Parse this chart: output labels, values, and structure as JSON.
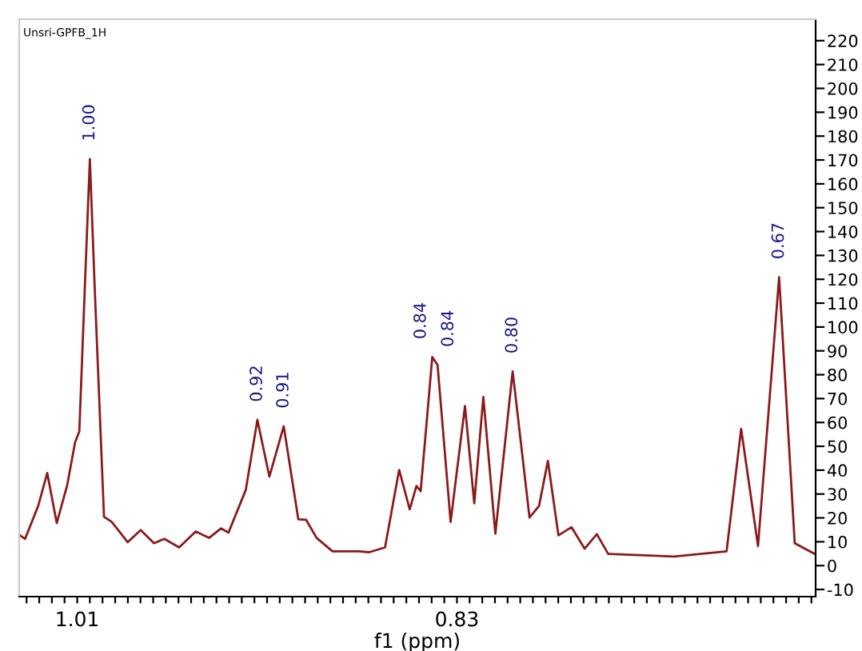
{
  "chart_data": {
    "type": "line",
    "xlabel": "f1 (ppm)",
    "annotations": [
      "Unsri-GPFB_1H",
      {
        "text": "1.00",
        "x": 1.004,
        "y": 170.4
      },
      {
        "text": "0.92",
        "x": 0.9246,
        "y": 61.1
      },
      {
        "text": "0.91",
        "x": 0.9121,
        "y": 58.4
      },
      {
        "text": "0.84",
        "x": 0.8417,
        "y": 87.4
      },
      {
        "text": "0.84",
        "x": 0.8392,
        "y": 84.1
      },
      {
        "text": "0.80",
        "x": 0.8036,
        "y": 81.4
      },
      {
        "text": "0.67",
        "x": 0.6773,
        "y": 120.9
      }
    ],
    "series": [
      {
        "color": "#8b1a1a",
        "x": [
          1.0371,
          1.0347,
          1.0285,
          1.0242,
          1.0197,
          1.0147,
          1.011,
          1.009,
          1.0065,
          1.004,
          1.0016,
          0.9973,
          0.9936,
          0.9861,
          0.9799,
          0.9736,
          0.9687,
          0.9617,
          0.9538,
          0.9475,
          0.9418,
          0.9383,
          0.9301,
          0.9246,
          0.9189,
          0.9121,
          0.9052,
          0.9015,
          0.8965,
          0.889,
          0.8765,
          0.8716,
          0.8641,
          0.8574,
          0.8524,
          0.8492,
          0.8472,
          0.8417,
          0.8392,
          0.833,
          0.8262,
          0.8218,
          0.8175,
          0.8118,
          0.8036,
          0.7956,
          0.7911,
          0.7869,
          0.7819,
          0.7757,
          0.7695,
          0.7637,
          0.7583,
          0.7271,
          0.7022,
          0.6953,
          0.6873,
          0.6773,
          0.6699,
          0.6604
        ],
        "values": [
          12.7,
          11.2,
          25,
          38.8,
          17.8,
          33.9,
          51.7,
          56.2,
          114,
          170.4,
          114,
          20.5,
          18.3,
          9.8,
          14.9,
          9.4,
          11.2,
          7.6,
          14.3,
          11.6,
          15.6,
          13.8,
          31.7,
          61.1,
          37.3,
          58.4,
          19.4,
          19.2,
          11.6,
          6.0,
          6.0,
          5.6,
          7.6,
          40.1,
          23.6,
          33.4,
          31.2,
          87.4,
          84.1,
          18.3,
          66.9,
          26.1,
          70.7,
          13.4,
          81.4,
          20.1,
          25,
          43.9,
          12.7,
          16.1,
          7.1,
          13.2,
          4.9,
          3.8,
          6,
          57.3,
          8.2,
          120.9,
          9.4,
          4.9
        ]
      }
    ],
    "xlim": [
      1.0375,
      0.66
    ],
    "xticks": [
      {
        "value": 1.034,
        "label": null
      },
      {
        "value": 1.028,
        "label": null
      },
      {
        "value": 1.022,
        "label": null
      },
      {
        "value": 1.016,
        "label": null
      },
      {
        "value": 1.01,
        "label": "1.01"
      },
      {
        "value": 1.004,
        "label": null
      },
      {
        "value": 0.998,
        "label": null
      },
      {
        "value": 0.992,
        "label": null
      },
      {
        "value": 0.986,
        "label": null
      },
      {
        "value": 0.98,
        "label": null
      },
      {
        "value": 0.974,
        "label": null
      },
      {
        "value": 0.968,
        "label": null
      },
      {
        "value": 0.962,
        "label": null
      },
      {
        "value": 0.956,
        "label": null
      },
      {
        "value": 0.95,
        "label": null
      },
      {
        "value": 0.944,
        "label": null
      },
      {
        "value": 0.938,
        "label": null
      },
      {
        "value": 0.932,
        "label": null
      },
      {
        "value": 0.926,
        "label": null
      },
      {
        "value": 0.92,
        "label": null
      },
      {
        "value": 0.914,
        "label": null
      },
      {
        "value": 0.908,
        "label": null
      },
      {
        "value": 0.902,
        "label": null
      },
      {
        "value": 0.896,
        "label": null
      },
      {
        "value": 0.89,
        "label": null
      },
      {
        "value": 0.884,
        "label": null
      },
      {
        "value": 0.878,
        "label": null
      },
      {
        "value": 0.872,
        "label": null
      },
      {
        "value": 0.866,
        "label": null
      },
      {
        "value": 0.86,
        "label": null
      },
      {
        "value": 0.854,
        "label": null
      },
      {
        "value": 0.848,
        "label": null
      },
      {
        "value": 0.842,
        "label": null
      },
      {
        "value": 0.836,
        "label": null
      },
      {
        "value": 0.83,
        "label": "0.83"
      },
      {
        "value": 0.824,
        "label": null
      },
      {
        "value": 0.818,
        "label": null
      },
      {
        "value": 0.812,
        "label": null
      },
      {
        "value": 0.806,
        "label": null
      },
      {
        "value": 0.8,
        "label": null
      },
      {
        "value": 0.794,
        "label": null
      },
      {
        "value": 0.788,
        "label": null
      },
      {
        "value": 0.782,
        "label": null
      },
      {
        "value": 0.776,
        "label": null
      },
      {
        "value": 0.77,
        "label": null
      },
      {
        "value": 0.764,
        "label": null
      },
      {
        "value": 0.758,
        "label": null
      },
      {
        "value": 0.752,
        "label": null
      },
      {
        "value": 0.746,
        "label": null
      },
      {
        "value": 0.74,
        "label": null
      },
      {
        "value": 0.734,
        "label": null
      },
      {
        "value": 0.728,
        "label": null
      },
      {
        "value": 0.722,
        "label": null
      },
      {
        "value": 0.716,
        "label": null
      },
      {
        "value": 0.71,
        "label": null
      },
      {
        "value": 0.704,
        "label": null
      },
      {
        "value": 0.698,
        "label": null
      },
      {
        "value": 0.692,
        "label": null
      },
      {
        "value": 0.686,
        "label": null
      },
      {
        "value": 0.68,
        "label": null
      },
      {
        "value": 0.674,
        "label": null
      },
      {
        "value": 0.668,
        "label": null
      },
      {
        "value": 0.662,
        "label": null
      }
    ],
    "ylim": [
      -13,
      229
    ],
    "yticks": [
      -10,
      0,
      10,
      20,
      30,
      40,
      50,
      60,
      70,
      80,
      90,
      100,
      110,
      120,
      130,
      140,
      150,
      160,
      170,
      180,
      190,
      200,
      210,
      220
    ],
    "grid": false,
    "marker": "none",
    "line_style": "solid"
  }
}
